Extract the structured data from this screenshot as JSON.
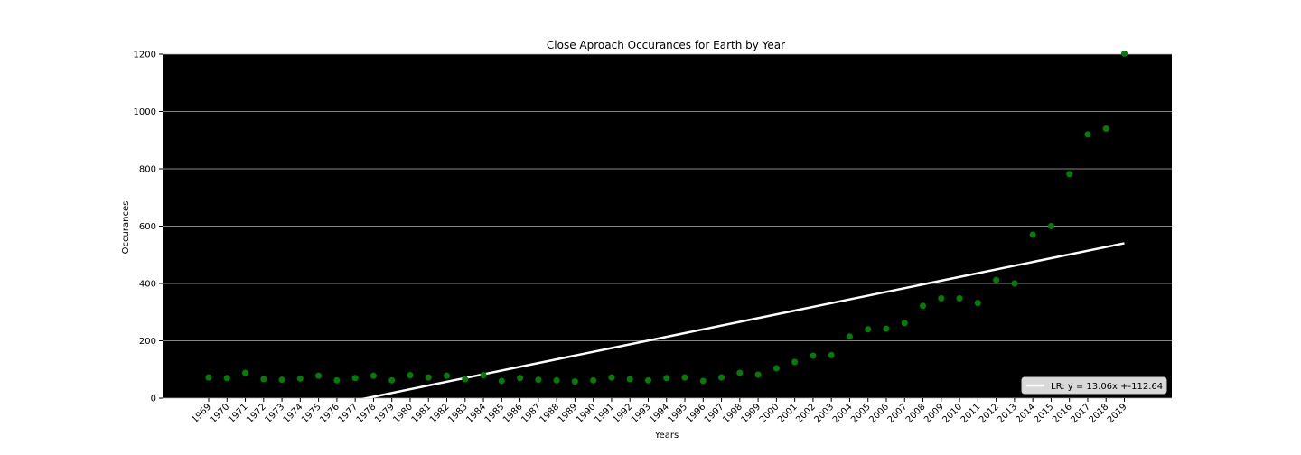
{
  "chart_data": {
    "type": "scatter",
    "title": "Close Aproach Occurances for Earth by Year",
    "xlabel": "Years",
    "ylabel": "Occurances",
    "ylim": [
      0,
      1200
    ],
    "yticks": [
      0,
      200,
      400,
      600,
      800,
      1000,
      1200
    ],
    "grid": "horizontal",
    "legend_position": "bottom-right",
    "colors": {
      "plot_background": "#000000",
      "points": "#008000",
      "regression_line": "#ffffff",
      "grid": "#b0b0b0"
    },
    "series": [
      {
        "x": [
          "1969",
          "1970",
          "1971",
          "1972",
          "1973",
          "1974",
          "1975",
          "1976",
          "1977",
          "1978",
          "1979",
          "1980",
          "1981",
          "1982",
          "1983",
          "1984",
          "1985",
          "1986",
          "1987",
          "1988",
          "1989",
          "1990",
          "1991",
          "1992",
          "1993",
          "1994",
          "1995",
          "1996",
          "1997",
          "1998",
          "1999",
          "2000",
          "2001",
          "2002",
          "2003",
          "2004",
          "2005",
          "2006",
          "2007",
          "2008",
          "2009",
          "2010",
          "2011",
          "2012",
          "2013",
          "2014",
          "2015",
          "2016",
          "2017",
          "2018",
          "2019"
        ],
        "y": [
          72,
          70,
          88,
          66,
          64,
          68,
          78,
          62,
          70,
          78,
          62,
          80,
          72,
          78,
          66,
          80,
          60,
          70,
          64,
          62,
          58,
          62,
          72,
          66,
          62,
          70,
          72,
          60,
          72,
          88,
          82,
          104,
          126,
          148,
          150,
          215,
          240,
          242,
          262,
          322,
          348,
          348,
          332,
          412,
          400,
          570,
          600,
          782,
          920,
          940,
          1202
        ]
      },
      {
        "name": "LR: y = 13.06x +-112.64",
        "type": "line",
        "slope": 13.06,
        "intercept": -112.64
      }
    ]
  }
}
